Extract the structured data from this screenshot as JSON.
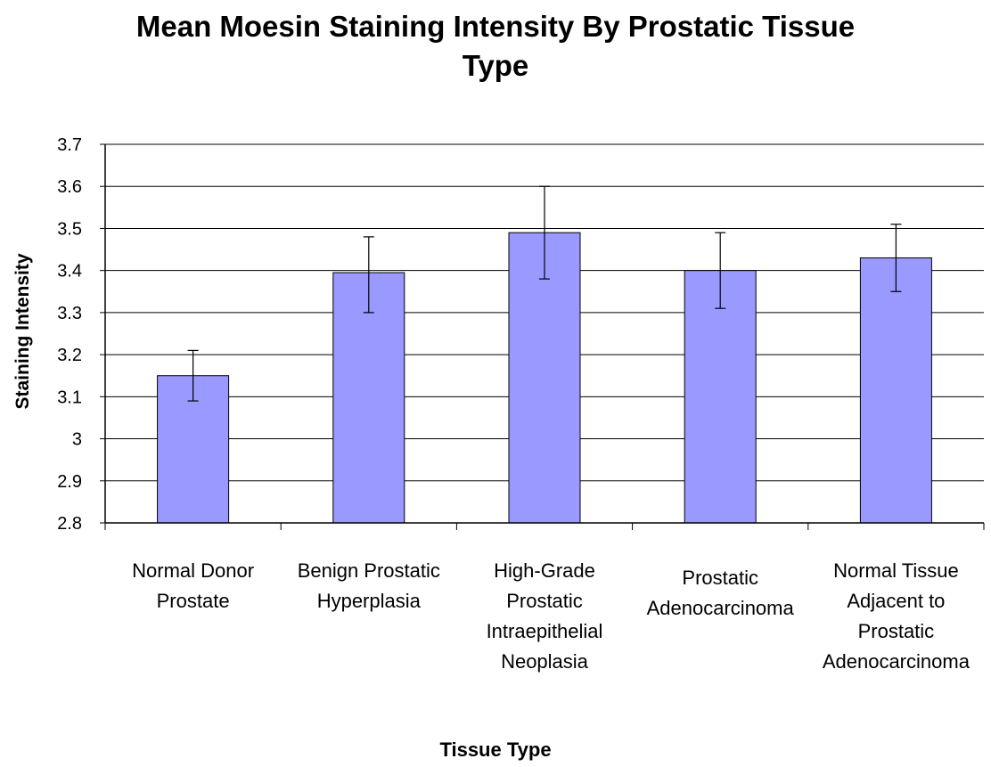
{
  "chart_data": {
    "type": "bar",
    "title": "Mean Moesin Staining Intensity By Prostatic Tissue Type",
    "title_lines": [
      "Mean Moesin Staining Intensity By Prostatic Tissue",
      "Type"
    ],
    "xlabel": "Tissue Type",
    "ylabel": "Staining Intensity",
    "ylim": [
      2.8,
      3.7
    ],
    "yticks": [
      "2.8",
      "2.9",
      "3",
      "3.1",
      "3.2",
      "3.3",
      "3.4",
      "3.5",
      "3.6",
      "3.7"
    ],
    "categories": [
      "Normal Donor Prostate",
      "Benign Prostatic Hyperplasia",
      "High-Grade Prostatic Intraepithelial Neoplasia",
      "Prostatic Adenocarcinoma",
      "Normal Tissue Adjacent to Prostatic Adenocarcinoma"
    ],
    "category_label_lines": [
      [
        "Normal Donor",
        "Prostate"
      ],
      [
        "Benign Prostatic",
        "Hyperplasia"
      ],
      [
        "High-Grade",
        "Prostatic",
        "Intraepithelial",
        "Neoplasia"
      ],
      [
        "Prostatic",
        "Adenocarcinoma"
      ],
      [
        "Normal Tissue",
        "Adjacent to",
        "Prostatic",
        "Adenocarcinoma"
      ]
    ],
    "values": [
      3.15,
      3.395,
      3.49,
      3.4,
      3.43
    ],
    "error_low": [
      3.09,
      3.3,
      3.38,
      3.31,
      3.35
    ],
    "error_high": [
      3.21,
      3.48,
      3.6,
      3.49,
      3.51
    ],
    "grid": true,
    "legend": "none",
    "colors": {
      "bar": "#9999ff",
      "bar_stroke": "#000000",
      "grid": "#000000",
      "axis": "#000000"
    }
  }
}
